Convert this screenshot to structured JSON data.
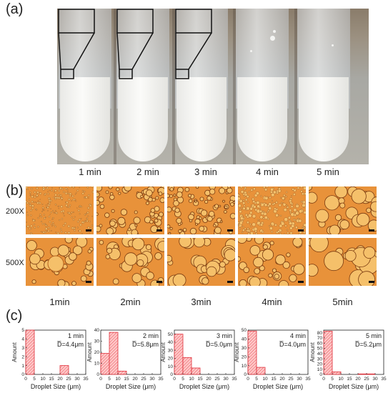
{
  "panel_labels": {
    "a": "(a)",
    "b": "(b)",
    "c": "(c)"
  },
  "panel_a": {
    "times": [
      "1 min",
      "2 min",
      "3 min",
      "4 min",
      "5 min"
    ]
  },
  "panel_b": {
    "magnifications": [
      "200X",
      "500X"
    ],
    "times": [
      "1min",
      "2min",
      "3min",
      "4min",
      "5min"
    ],
    "colors": {
      "background": "#e8923a",
      "droplet": "#f5c06a"
    }
  },
  "chart_data": [
    {
      "type": "bar",
      "label": "1 min",
      "mean_label": "D̅=4.4μm",
      "xlabel": "Droplet Size (μm)",
      "ylabel": "Amount",
      "x": [
        2.5,
        22.5
      ],
      "values": [
        5,
        1
      ],
      "xlim": [
        0,
        35
      ],
      "ylim": [
        0,
        5
      ],
      "yticks": [
        0,
        1,
        2,
        3,
        4,
        5
      ],
      "xticks": [
        0,
        5,
        10,
        15,
        20,
        25,
        30,
        35
      ]
    },
    {
      "type": "bar",
      "label": "2 min",
      "mean_label": "D̅=5.8μm",
      "xlabel": "Droplet Size (μm)",
      "ylabel": "Amount",
      "x": [
        2.5,
        7.5,
        12.5
      ],
      "values": [
        19,
        38,
        3
      ],
      "xlim": [
        0,
        35
      ],
      "ylim": [
        0,
        40
      ],
      "yticks": [
        0,
        10,
        20,
        30,
        40
      ],
      "xticks": [
        0,
        5,
        10,
        15,
        20,
        25,
        30,
        35
      ]
    },
    {
      "type": "bar",
      "label": "3 min",
      "mean_label": "D̅=5.0μm",
      "xlabel": "Droplet Size (μm)",
      "ylabel": "Amount",
      "x": [
        2.5,
        7.5,
        12.5
      ],
      "values": [
        50,
        21,
        8
      ],
      "xlim": [
        0,
        35
      ],
      "ylim": [
        0,
        55
      ],
      "yticks": [
        0,
        10,
        20,
        30,
        40,
        50
      ],
      "xticks": [
        0,
        5,
        10,
        15,
        20,
        25,
        30,
        35
      ]
    },
    {
      "type": "bar",
      "label": "4 min",
      "mean_label": "D̅=4.0μm",
      "xlabel": "Droplet Size (μm)",
      "ylabel": "Amount",
      "x": [
        2.5,
        7.5
      ],
      "values": [
        49,
        8
      ],
      "xlim": [
        0,
        35
      ],
      "ylim": [
        0,
        50
      ],
      "yticks": [
        0,
        10,
        20,
        30,
        40,
        50
      ],
      "xticks": [
        0,
        5,
        10,
        15,
        20,
        25,
        30,
        35
      ]
    },
    {
      "type": "bar",
      "label": "5 min",
      "mean_label": "D̅=5.2μm",
      "xlabel": "Droplet Size (μm)",
      "ylabel": "Amount",
      "x": [
        2.5,
        7.5,
        22.5,
        27.5
      ],
      "values": [
        83,
        5,
        1,
        1
      ],
      "xlim": [
        0,
        35
      ],
      "ylim": [
        0,
        85
      ],
      "yticks": [
        0,
        10,
        20,
        30,
        40,
        50,
        60,
        70,
        80
      ],
      "xticks": [
        0,
        5,
        10,
        15,
        20,
        25,
        30,
        35
      ]
    }
  ],
  "colors": {
    "bar_edge": "#e0303a",
    "bar_fill": "#ffc9c9"
  }
}
